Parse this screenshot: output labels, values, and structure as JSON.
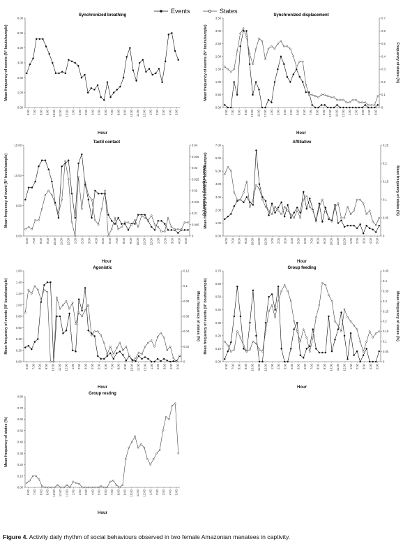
{
  "legend": {
    "events": "Events",
    "states": "States"
  },
  "caption": {
    "label": "Figure 4.",
    "text": "Activity daily rhythm of social behaviours observed in two female Amazonian manatees in captivity."
  },
  "chart_data": [
    {
      "type": "line",
      "title": "Synchronized breathing",
      "xlabel": "Hour",
      "ylabel": "Mean frequency of events (N° bouts/sample)",
      "ylim": [
        0,
        6.0
      ],
      "yticks": [
        "0.00",
        "1.00",
        "2.00",
        "3.00",
        "4.00",
        "5.00",
        "6.00"
      ],
      "xticks": [
        "6:00",
        "7:00",
        "8:00",
        "9:00",
        "10:00",
        "11:00",
        "12:00",
        "1:00",
        "2:00",
        "3:00",
        "4:00",
        "5:00",
        "6:00",
        "7:00",
        "8:00",
        "9:00",
        "10:00",
        "11:00",
        "12:00",
        "1:00",
        "2:00",
        "3:00",
        "4:00",
        "5:00"
      ],
      "series": [
        {
          "name": "Events",
          "marker": "filled",
          "axis": "left",
          "values": [
            2.3,
            2.9,
            3.3,
            4.6,
            4.6,
            4.6,
            4.1,
            3.6,
            3.0,
            2.3,
            2.3,
            2.4,
            2.3,
            3.2,
            3.1,
            3.0,
            2.8,
            2.0,
            2.2,
            1.0,
            1.3,
            1.2,
            1.5,
            0.7,
            0.5,
            1.7,
            0.7,
            1.0,
            1.2,
            1.4,
            2.0,
            3.4,
            4.0,
            2.5,
            1.8,
            3.0,
            3.2,
            2.4,
            2.6,
            2.2,
            2.3,
            2.6,
            1.7,
            3.1,
            4.9,
            5.0,
            3.8,
            3.2
          ]
        }
      ]
    },
    {
      "type": "line",
      "title": "Synchronized displacement",
      "xlabel": "Hour",
      "ylabel": "Mean frequency of events (N° bouts/sample)",
      "ylabel_right": "Frequency of states (%)",
      "ylim": [
        0,
        3.5
      ],
      "ylim_right": [
        0,
        0.7
      ],
      "yticks": [
        "0.00",
        "0.50",
        "1.00",
        "1.50",
        "2.00",
        "2.50",
        "3.00",
        "3.50"
      ],
      "yticks_right": [
        "0",
        "0.1",
        "0.2",
        "0.3",
        "0.4",
        "0.5",
        "0.6",
        "0.7"
      ],
      "xticks": [
        "6:00",
        "7:00",
        "8:00",
        "9:00",
        "10:00",
        "11:00",
        "12:00",
        "1:00",
        "2:00",
        "3:00",
        "4:00",
        "5:00",
        "6:00",
        "7:00",
        "8:00",
        "9:00",
        "10:00",
        "11:00",
        "12:00",
        "1:00",
        "2:00",
        "3:00",
        "4:00",
        "5:00"
      ],
      "series": [
        {
          "name": "Events",
          "marker": "filled",
          "axis": "left",
          "values": [
            0.1,
            0.0,
            0.0,
            1.0,
            0.5,
            2.4,
            3.0,
            3.0,
            1.7,
            0.5,
            1.0,
            0.7,
            0.0,
            0.0,
            0.3,
            0.2,
            1.0,
            1.5,
            2.0,
            1.7,
            1.2,
            1.0,
            1.3,
            1.5,
            1.2,
            1.0,
            0.6,
            0.6,
            0.1,
            0.0,
            0.0,
            0.1,
            0.1,
            0.0,
            0.0,
            0.0,
            0.1,
            0.0,
            0.0,
            0.0,
            0.0,
            0.0,
            0.0,
            0.0,
            0.0,
            0.1,
            0.0,
            0.0,
            0.0,
            0.1
          ]
        },
        {
          "name": "States",
          "marker": "open",
          "axis": "right",
          "values": [
            0.32,
            0.3,
            0.28,
            0.3,
            0.44,
            0.58,
            0.62,
            0.55,
            0.42,
            0.34,
            0.46,
            0.54,
            0.52,
            0.38,
            0.46,
            0.48,
            0.46,
            0.5,
            0.52,
            0.48,
            0.48,
            0.46,
            0.4,
            0.32,
            0.36,
            0.36,
            0.18,
            0.1,
            0.1,
            0.09,
            0.08,
            0.1,
            0.1,
            0.09,
            0.08,
            0.08,
            0.06,
            0.06,
            0.06,
            0.04,
            0.04,
            0.06,
            0.06,
            0.04,
            0.04,
            0.04,
            0.02,
            0.02,
            0.02,
            0.09
          ]
        }
      ]
    },
    {
      "type": "line",
      "title": "Tactil contact",
      "xlabel": "Hour",
      "ylabel": "Mean frequency of event (N° bouts/sample)",
      "ylabel_right": "Mean frequency of states (%)",
      "ylim": [
        0,
        15.0
      ],
      "ylim_right": [
        0,
        0.04
      ],
      "yticks": [
        "0.00",
        "5.00",
        "10.00",
        "15.00"
      ],
      "yticks_right": [
        "0",
        "0.005",
        "0.01",
        "0.015",
        "0.02",
        "0.025",
        "0.03",
        "0.035",
        "0.04"
      ],
      "xticks": [
        "6:00",
        "7:00",
        "8:00",
        "9:00",
        "10:00",
        "11:00",
        "12:00",
        "1:00",
        "2:00",
        "3:00",
        "4:00",
        "5:00",
        "6:00",
        "7:00",
        "8:00",
        "9:00",
        "10:00",
        "11:00",
        "12:00",
        "1:00",
        "2:00",
        "3:00",
        "4:00",
        "5:00"
      ],
      "series": [
        {
          "name": "Events",
          "marker": "filled",
          "axis": "left",
          "values": [
            6.0,
            8.0,
            8.0,
            9.0,
            11.5,
            12.5,
            12.5,
            11.0,
            9.0,
            5.5,
            3.0,
            11.5,
            12.0,
            12.5,
            7.0,
            3.0,
            12.0,
            13.5,
            8.5,
            6.0,
            3.0,
            7.5,
            7.0,
            7.0,
            7.0,
            3.5,
            2.5,
            2.0,
            3.0,
            2.0,
            2.0,
            1.0,
            2.0,
            2.0,
            3.5,
            3.5,
            3.5,
            2.5,
            1.5,
            1.0,
            2.5,
            2.5,
            2.0,
            1.0,
            1.0,
            1.0,
            0.5,
            1.0,
            1.0,
            1.0
          ]
        },
        {
          "name": "States",
          "marker": "open",
          "axis": "right",
          "values": [
            0.003,
            0.004,
            0.003,
            0.007,
            0.007,
            0.012,
            0.018,
            0.02,
            0.018,
            0.014,
            0.01,
            0.016,
            0.033,
            0.025,
            0.006,
            0.0,
            0.026,
            0.012,
            0.024,
            0.018,
            0.016,
            0.007,
            0.005,
            0.012,
            0.02,
            0.0,
            0.003,
            0.008,
            0.003,
            0.004,
            0.006,
            0.006,
            0.005,
            0.007,
            0.004,
            0.009,
            0.008,
            0.007,
            0.009,
            0.005,
            0.004,
            0.002,
            0.002,
            0.008,
            0.004,
            0.003,
            0.003,
            0.003,
            0.006,
            0.006
          ]
        }
      ]
    },
    {
      "type": "line",
      "title": "Affiliative",
      "xlabel": "Hour",
      "ylabel": "Mean frequency of events (N° bouts/sample)",
      "ylabel_right": "Mean frequency of states (%)",
      "ylim": [
        0,
        7.0
      ],
      "ylim_right": [
        0,
        0.25
      ],
      "yticks": [
        "0.00",
        "1.00",
        "2.00",
        "3.00",
        "4.00",
        "5.00",
        "6.00",
        "7.00"
      ],
      "yticks_right": [
        "0",
        "0.05",
        "0.1",
        "0.15",
        "0.2",
        "0.25"
      ],
      "xticks": [
        "6:00",
        "7:00",
        "8:00",
        "9:00",
        "10:00",
        "11:00",
        "12:00",
        "1:00",
        "2:00",
        "3:00",
        "4:00",
        "5:00",
        "6:00",
        "7:00",
        "8:00",
        "9:00",
        "10:00",
        "11:00",
        "12:00",
        "1:00",
        "2:00",
        "3:00",
        "4:00",
        "5:00"
      ],
      "series": [
        {
          "name": "Events",
          "marker": "filled",
          "axis": "left",
          "values": [
            1.3,
            1.5,
            1.7,
            2.3,
            2.7,
            2.8,
            2.6,
            3.0,
            2.6,
            2.4,
            6.6,
            4.0,
            3.0,
            2.7,
            1.6,
            2.5,
            1.8,
            2.2,
            2.6,
            1.5,
            2.4,
            1.4,
            1.8,
            2.2,
            1.8,
            3.4,
            2.1,
            2.9,
            2.0,
            1.2,
            2.5,
            1.1,
            2.2,
            1.3,
            1.2,
            2.4,
            1.0,
            1.2,
            0.7,
            0.8,
            0.8,
            0.8,
            0.6,
            0.9,
            0.2,
            0.8,
            0.6,
            0.5,
            0.3,
            0.8
          ]
        },
        {
          "name": "States",
          "marker": "open",
          "axis": "right",
          "values": [
            0.17,
            0.19,
            0.18,
            0.12,
            0.1,
            0.1,
            0.12,
            0.15,
            0.08,
            0.1,
            0.14,
            0.13,
            0.1,
            0.08,
            0.07,
            0.06,
            0.08,
            0.07,
            0.06,
            0.08,
            0.07,
            0.06,
            0.05,
            0.07,
            0.05,
            0.1,
            0.11,
            0.08,
            0.07,
            0.04,
            0.08,
            0.1,
            0.07,
            0.05,
            0.04,
            0.08,
            0.09,
            0.05,
            0.05,
            0.08,
            0.06,
            0.07,
            0.1,
            0.1,
            0.09,
            0.06,
            0.07,
            0.04,
            0.03,
            0.05
          ]
        }
      ]
    },
    {
      "type": "line",
      "title": "Agonistic",
      "xlabel": "Hour",
      "ylabel": "Mean frequency of events (N° bouts/sample)",
      "ylabel_right": "Mean frequency of states (%)",
      "ylim": [
        0,
        1.6
      ],
      "ylim_right": [
        0,
        0.12
      ],
      "yticks": [
        "0.00",
        "0.20",
        "0.40",
        "0.60",
        "0.80",
        "1.00",
        "1.20",
        "1.40",
        "1.60"
      ],
      "yticks_right": [
        "0",
        "0.02",
        "0.04",
        "0.06",
        "0.08",
        "0.1",
        "0.12"
      ],
      "xticks": [
        "6:00",
        "7:00",
        "8:00",
        "9:00",
        "10:00",
        "11:00",
        "12:00",
        "1:00",
        "2:00",
        "3:00",
        "4:00",
        "5:00",
        "6:00",
        "7:00",
        "8:00",
        "9:00",
        "10:00",
        "11:00",
        "12:00",
        "1:00",
        "2:00",
        "3:00",
        "4:00",
        "5:00"
      ],
      "series": [
        {
          "name": "Events",
          "marker": "filled",
          "axis": "left",
          "values": [
            0.25,
            0.28,
            0.22,
            0.35,
            0.4,
            1.05,
            1.35,
            1.4,
            1.4,
            0.0,
            0.8,
            0.8,
            0.5,
            0.55,
            0.85,
            0.2,
            0.18,
            1.1,
            0.9,
            1.3,
            0.55,
            0.5,
            0.45,
            0.1,
            0.05,
            0.05,
            0.1,
            0.15,
            0.05,
            0.15,
            0.18,
            0.12,
            0.02,
            0.1,
            0.03,
            0.01,
            0.1,
            0.05,
            0.08,
            0.05,
            0.0,
            0.0,
            0.05,
            0.01,
            0.05,
            0.02,
            0.0,
            0.01,
            0.01,
            0.1
          ]
        },
        {
          "name": "States",
          "marker": "open",
          "axis": "right",
          "values": [
            0.065,
            0.095,
            0.09,
            0.1,
            0.095,
            0.082,
            0.095,
            0.092,
            0.0,
            0.0,
            0.085,
            0.07,
            0.075,
            0.08,
            0.07,
            0.078,
            0.05,
            0.065,
            0.06,
            0.068,
            0.075,
            0.035,
            0.04,
            0.04,
            0.035,
            0.025,
            0.01,
            0.02,
            0.01,
            0.018,
            0.025,
            0.015,
            0.02,
            0.008,
            0.0,
            0.005,
            0.012,
            0.01,
            0.02,
            0.025,
            0.028,
            0.02,
            0.033,
            0.038,
            0.032,
            0.015,
            0.02,
            0.005,
            0.0,
            0.008
          ]
        }
      ]
    },
    {
      "type": "line",
      "title": "Group feeding",
      "xlabel": "Hour",
      "ylabel": "Mean frequency of events (N° bouts/sample)",
      "ylabel_right": "Mean frequency of states (%)",
      "ylim": [
        0,
        0.7
      ],
      "ylim_right": [
        0,
        0.45
      ],
      "yticks": [
        "0.00",
        "0.10",
        "0.20",
        "0.30",
        "0.40",
        "0.50",
        "0.60",
        "0.70"
      ],
      "yticks_right": [
        "0",
        "0.05",
        "0.1",
        "0.15",
        "0.2",
        "0.25",
        "0.3",
        "0.35",
        "0.4",
        "0.45"
      ],
      "xticks": [
        "6:00",
        "7:00",
        "8:00",
        "9:00",
        "10:00",
        "11:00",
        "12:00",
        "1:00",
        "2:00",
        "3:00",
        "4:00",
        "5:00",
        "6:00",
        "7:00",
        "8:00",
        "9:00",
        "10:00",
        "11:00",
        "12:00",
        "1:00",
        "2:00",
        "3:00",
        "4:00",
        "5:00"
      ],
      "series": [
        {
          "name": "Events",
          "marker": "filled",
          "axis": "left",
          "values": [
            0.02,
            0.08,
            0.15,
            0.35,
            0.58,
            0.35,
            0.1,
            0.08,
            0.3,
            0.55,
            0.2,
            0.0,
            0.0,
            0.3,
            0.5,
            0.52,
            0.4,
            0.58,
            0.1,
            0.0,
            0.0,
            0.1,
            0.25,
            0.3,
            0.05,
            0.03,
            0.1,
            0.12,
            0.25,
            0.1,
            0.07,
            0.07,
            0.07,
            0.35,
            0.08,
            0.17,
            0.25,
            0.38,
            0.2,
            0.02,
            0.22,
            0.05,
            0.08,
            0.0,
            0.05,
            0.1,
            0.0,
            0.0,
            0.0,
            0.08
          ]
        },
        {
          "name": "States",
          "marker": "open",
          "axis": "right",
          "values": [
            0.1,
            0.08,
            0.05,
            0.06,
            0.15,
            0.12,
            0.08,
            0.05,
            0.06,
            0.1,
            0.09,
            0.06,
            0.05,
            0.15,
            0.25,
            0.28,
            0.22,
            0.3,
            0.35,
            0.38,
            0.35,
            0.3,
            0.2,
            0.15,
            0.1,
            0.16,
            0.12,
            0.05,
            0.12,
            0.22,
            0.28,
            0.39,
            0.38,
            0.33,
            0.3,
            0.2,
            0.18,
            0.15,
            0.26,
            0.22,
            0.2,
            0.18,
            0.16,
            0.1,
            0.05,
            0.1,
            0.15,
            0.12,
            0.14,
            0.15
          ]
        }
      ]
    },
    {
      "type": "line",
      "title": "Group resting",
      "xlabel": "Hour",
      "ylabel": "Mean frequency of states (%)",
      "ylim": [
        0,
        0.8
      ],
      "yticks": [
        "0.00",
        "0.10",
        "0.20",
        "0.30",
        "0.40",
        "0.50",
        "0.60",
        "0.70",
        "0.80"
      ],
      "xticks": [
        "6:00",
        "7:00",
        "8:00",
        "9:00",
        "10:00",
        "11:00",
        "12:00",
        "1:00",
        "2:00",
        "3:00",
        "4:00",
        "5:00",
        "6:00",
        "7:00",
        "8:00",
        "9:00",
        "10:00",
        "11:00",
        "12:00",
        "1:00",
        "2:00",
        "3:00",
        "4:00",
        "5:00"
      ],
      "series": [
        {
          "name": "States",
          "marker": "open",
          "axis": "left",
          "values": [
            0.04,
            0.06,
            0.1,
            0.1,
            0.07,
            0.01,
            0.0,
            0.0,
            0.0,
            0.0,
            0.02,
            0.0,
            0.0,
            0.02,
            0.0,
            0.05,
            0.04,
            0.03,
            0.0,
            0.0,
            0.0,
            0.0,
            0.0,
            0.0,
            0.01,
            0.0,
            0.0,
            0.05,
            0.06,
            0.02,
            0.0,
            0.02,
            0.25,
            0.35,
            0.4,
            0.45,
            0.35,
            0.38,
            0.35,
            0.25,
            0.2,
            0.25,
            0.3,
            0.33,
            0.5,
            0.62,
            0.6,
            0.72,
            0.74,
            0.3
          ]
        }
      ]
    }
  ]
}
